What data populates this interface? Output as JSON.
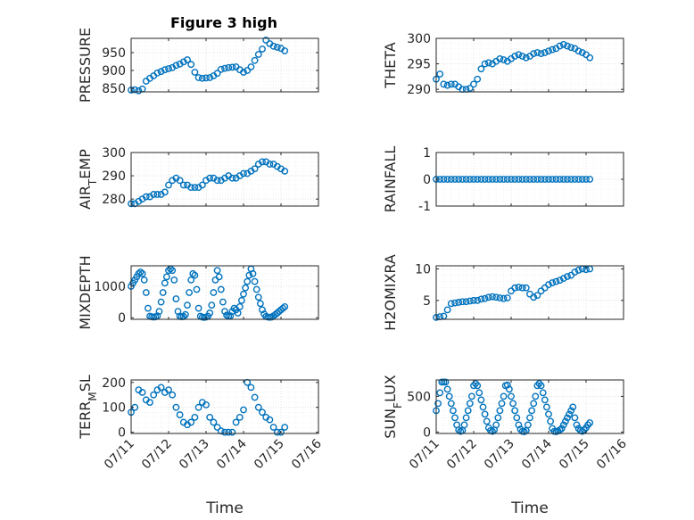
{
  "figure_title": "Figure 3 high",
  "colors": {
    "marker": "#0072BD",
    "axis": "#262626",
    "grid": "#dcdcdc"
  },
  "chart_data": [
    {
      "type": "scatter",
      "ylabel": "PRESSURE",
      "xlim": [
        0,
        5
      ],
      "ylim": [
        840,
        990
      ],
      "yticks": [
        850,
        900,
        950
      ],
      "ytick_labels": [
        "850",
        "900",
        "950"
      ],
      "xtick_labels": [],
      "grid": true,
      "x": [
        0.0,
        0.1,
        0.2,
        0.3,
        0.4,
        0.5,
        0.6,
        0.7,
        0.8,
        0.9,
        1.0,
        1.1,
        1.2,
        1.3,
        1.4,
        1.5,
        1.6,
        1.7,
        1.8,
        1.9,
        2.0,
        2.1,
        2.2,
        2.3,
        2.4,
        2.5,
        2.6,
        2.7,
        2.8,
        2.9,
        3.0,
        3.1,
        3.2,
        3.3,
        3.4,
        3.5,
        3.6,
        3.7,
        3.8,
        3.9,
        4.0,
        4.1
      ],
      "y": [
        845,
        846,
        843,
        848,
        870,
        878,
        885,
        893,
        897,
        902,
        905,
        908,
        914,
        918,
        924,
        930,
        917,
        895,
        880,
        878,
        879,
        880,
        885,
        892,
        903,
        906,
        908,
        909,
        910,
        902,
        895,
        900,
        910,
        928,
        945,
        960,
        985,
        975,
        968,
        965,
        962,
        955
      ]
    },
    {
      "type": "scatter",
      "ylabel": "AIR_TEMP",
      "xlim": [
        0,
        5
      ],
      "ylim": [
        277,
        300
      ],
      "yticks": [
        280,
        290,
        300
      ],
      "ytick_labels": [
        "280",
        "290",
        "300"
      ],
      "xtick_labels": [],
      "grid": true,
      "x": [
        0.0,
        0.1,
        0.2,
        0.3,
        0.4,
        0.5,
        0.6,
        0.7,
        0.8,
        0.9,
        1.0,
        1.1,
        1.2,
        1.3,
        1.4,
        1.5,
        1.6,
        1.7,
        1.8,
        1.9,
        2.0,
        2.1,
        2.2,
        2.3,
        2.4,
        2.5,
        2.6,
        2.7,
        2.8,
        2.9,
        3.0,
        3.1,
        3.2,
        3.3,
        3.4,
        3.5,
        3.6,
        3.7,
        3.8,
        3.9,
        4.0,
        4.1
      ],
      "y": [
        278,
        278,
        279,
        280,
        281,
        281,
        282,
        282,
        282,
        283,
        286,
        288,
        289,
        288,
        286,
        286,
        285,
        285,
        285,
        286,
        288,
        289,
        289,
        288,
        288,
        289,
        290,
        289,
        289,
        290,
        291,
        291,
        292,
        293,
        295,
        296,
        296,
        295,
        295,
        294,
        293,
        292
      ]
    },
    {
      "type": "scatter",
      "ylabel": "MIXDEPTH",
      "xlim": [
        0,
        5
      ],
      "ylim": [
        -50,
        1650
      ],
      "yticks": [
        0,
        1000
      ],
      "ytick_labels": [
        "0",
        "1000"
      ],
      "xtick_labels": [],
      "grid": true,
      "x": [
        0.0,
        0.05,
        0.1,
        0.15,
        0.2,
        0.25,
        0.3,
        0.35,
        0.4,
        0.45,
        0.5,
        0.55,
        0.6,
        0.65,
        0.7,
        0.75,
        0.8,
        0.85,
        0.9,
        0.95,
        1.0,
        1.05,
        1.1,
        1.15,
        1.2,
        1.25,
        1.3,
        1.35,
        1.4,
        1.45,
        1.5,
        1.55,
        1.6,
        1.65,
        1.7,
        1.75,
        1.8,
        1.85,
        1.9,
        1.95,
        2.0,
        2.05,
        2.1,
        2.15,
        2.2,
        2.25,
        2.3,
        2.35,
        2.4,
        2.45,
        2.5,
        2.55,
        2.6,
        2.65,
        2.7,
        2.75,
        2.8,
        2.85,
        2.9,
        2.95,
        3.0,
        3.05,
        3.1,
        3.15,
        3.2,
        3.25,
        3.3,
        3.35,
        3.4,
        3.45,
        3.5,
        3.55,
        3.6,
        3.65,
        3.7,
        3.75,
        3.8,
        3.85,
        3.9,
        3.95,
        4.0,
        4.05,
        4.1
      ],
      "y": [
        1000,
        1100,
        1200,
        1300,
        1400,
        1450,
        1400,
        1200,
        800,
        300,
        50,
        30,
        20,
        30,
        60,
        200,
        500,
        800,
        1100,
        1300,
        1500,
        1550,
        1500,
        1200,
        600,
        200,
        50,
        30,
        40,
        100,
        400,
        800,
        1200,
        1400,
        1350,
        900,
        300,
        50,
        20,
        10,
        20,
        50,
        150,
        400,
        800,
        1200,
        1500,
        1300,
        900,
        500,
        200,
        80,
        50,
        60,
        200,
        300,
        250,
        150,
        350,
        550,
        750,
        950,
        1150,
        1350,
        1550,
        1400,
        1150,
        900,
        650,
        450,
        250,
        120,
        40,
        20,
        15,
        20,
        60,
        100,
        150,
        200,
        250,
        300,
        350
      ]
    },
    {
      "type": "scatter",
      "ylabel": "TERR_MSL",
      "xlim": [
        0,
        5
      ],
      "ylim": [
        -5,
        210
      ],
      "yticks": [
        0,
        100,
        200
      ],
      "ytick_labels": [
        "0",
        "100",
        "200"
      ],
      "xtick_labels": [
        "07/11",
        "07/12",
        "07/13",
        "07/14",
        "07/15",
        "07/16"
      ],
      "xlabel": "Time",
      "grid": true,
      "x": [
        0.0,
        0.1,
        0.2,
        0.3,
        0.4,
        0.5,
        0.6,
        0.7,
        0.8,
        0.9,
        1.0,
        1.1,
        1.2,
        1.3,
        1.4,
        1.5,
        1.6,
        1.7,
        1.8,
        1.9,
        2.0,
        2.1,
        2.2,
        2.3,
        2.4,
        2.5,
        2.6,
        2.7,
        2.8,
        2.9,
        3.0,
        3.1,
        3.2,
        3.3,
        3.4,
        3.5,
        3.6,
        3.7,
        3.8,
        3.9,
        4.0,
        4.1
      ],
      "y": [
        80,
        100,
        170,
        160,
        130,
        120,
        150,
        170,
        180,
        160,
        170,
        150,
        100,
        70,
        40,
        30,
        40,
        60,
        100,
        120,
        110,
        60,
        40,
        20,
        5,
        0,
        0,
        0,
        40,
        60,
        90,
        200,
        180,
        140,
        100,
        80,
        60,
        50,
        20,
        0,
        0,
        20
      ]
    },
    {
      "type": "scatter",
      "ylabel": "THETA",
      "xlim": [
        0,
        5
      ],
      "ylim": [
        289.5,
        300
      ],
      "yticks": [
        290,
        295,
        300
      ],
      "ytick_labels": [
        "290",
        "295",
        "300"
      ],
      "xtick_labels": [],
      "grid": true,
      "x": [
        0.0,
        0.1,
        0.2,
        0.3,
        0.4,
        0.5,
        0.6,
        0.7,
        0.8,
        0.9,
        1.0,
        1.1,
        1.2,
        1.3,
        1.4,
        1.5,
        1.6,
        1.7,
        1.8,
        1.9,
        2.0,
        2.1,
        2.2,
        2.3,
        2.4,
        2.5,
        2.6,
        2.7,
        2.8,
        2.9,
        3.0,
        3.1,
        3.2,
        3.3,
        3.4,
        3.5,
        3.6,
        3.7,
        3.8,
        3.9,
        4.0,
        4.1
      ],
      "y": [
        292,
        293,
        291,
        290.8,
        291,
        291,
        290.5,
        290,
        290,
        290.2,
        291,
        292,
        294,
        295,
        295.2,
        295,
        295.5,
        296,
        295.8,
        295.5,
        296,
        296.5,
        296.8,
        296.5,
        296.2,
        296.5,
        297,
        297.2,
        297,
        297.2,
        297.5,
        297.8,
        298,
        298.5,
        298.8,
        298.5,
        298.2,
        298,
        297.5,
        297.2,
        296.8,
        296.2
      ]
    },
    {
      "type": "scatter",
      "ylabel": "RAINFALL",
      "xlim": [
        0,
        5
      ],
      "ylim": [
        -1,
        1
      ],
      "yticks": [
        -1,
        0,
        1
      ],
      "ytick_labels": [
        "-1",
        "0",
        "1"
      ],
      "xtick_labels": [],
      "grid": true,
      "x": [
        0.0,
        0.1,
        0.2,
        0.3,
        0.4,
        0.5,
        0.6,
        0.7,
        0.8,
        0.9,
        1.0,
        1.1,
        1.2,
        1.3,
        1.4,
        1.5,
        1.6,
        1.7,
        1.8,
        1.9,
        2.0,
        2.1,
        2.2,
        2.3,
        2.4,
        2.5,
        2.6,
        2.7,
        2.8,
        2.9,
        3.0,
        3.1,
        3.2,
        3.3,
        3.4,
        3.5,
        3.6,
        3.7,
        3.8,
        3.9,
        4.0,
        4.1
      ],
      "y": [
        0,
        0,
        0,
        0,
        0,
        0,
        0,
        0,
        0,
        0,
        0,
        0,
        0,
        0,
        0,
        0,
        0,
        0,
        0,
        0,
        0,
        0,
        0,
        0,
        0,
        0,
        0,
        0,
        0,
        0,
        0,
        0,
        0,
        0,
        0,
        0,
        0,
        0,
        0,
        0,
        0,
        0
      ]
    },
    {
      "type": "scatter",
      "ylabel": "H2OMIXRA",
      "xlim": [
        0,
        5
      ],
      "ylim": [
        2,
        10.5
      ],
      "yticks": [
        5,
        10
      ],
      "ytick_labels": [
        "5",
        "10"
      ],
      "xtick_labels": [],
      "grid": true,
      "x": [
        0.0,
        0.1,
        0.2,
        0.3,
        0.4,
        0.5,
        0.6,
        0.7,
        0.8,
        0.9,
        1.0,
        1.1,
        1.2,
        1.3,
        1.4,
        1.5,
        1.6,
        1.7,
        1.8,
        1.9,
        2.0,
        2.1,
        2.2,
        2.3,
        2.4,
        2.5,
        2.6,
        2.7,
        2.8,
        2.9,
        3.0,
        3.1,
        3.2,
        3.3,
        3.4,
        3.5,
        3.6,
        3.7,
        3.8,
        3.9,
        4.0,
        4.1
      ],
      "y": [
        2.3,
        2.4,
        2.5,
        3.5,
        4.5,
        4.6,
        4.7,
        4.8,
        4.8,
        4.9,
        5.0,
        5.0,
        5.2,
        5.3,
        5.5,
        5.6,
        5.5,
        5.4,
        5.3,
        5.4,
        6.5,
        7.0,
        7.1,
        7.0,
        7.0,
        6.0,
        5.5,
        5.8,
        6.5,
        7.0,
        7.5,
        7.8,
        8.0,
        8.2,
        8.5,
        8.8,
        9.0,
        9.5,
        9.8,
        10.0,
        9.9,
        10.0
      ]
    },
    {
      "type": "scatter",
      "ylabel": "SUN_FLUX",
      "xlim": [
        0,
        5
      ],
      "ylim": [
        -20,
        730
      ],
      "yticks": [
        0,
        500
      ],
      "ytick_labels": [
        "0",
        "500"
      ],
      "xtick_labels": [
        "07/11",
        "07/12",
        "07/13",
        "07/14",
        "07/15",
        "07/16"
      ],
      "xlabel": "Time",
      "grid": true,
      "x": [
        0.0,
        0.05,
        0.1,
        0.15,
        0.2,
        0.25,
        0.3,
        0.35,
        0.4,
        0.45,
        0.5,
        0.55,
        0.6,
        0.65,
        0.7,
        0.75,
        0.8,
        0.85,
        0.9,
        0.95,
        1.0,
        1.05,
        1.1,
        1.15,
        1.2,
        1.25,
        1.3,
        1.35,
        1.4,
        1.45,
        1.5,
        1.55,
        1.6,
        1.65,
        1.7,
        1.75,
        1.8,
        1.85,
        1.9,
        1.95,
        2.0,
        2.05,
        2.1,
        2.15,
        2.2,
        2.25,
        2.3,
        2.35,
        2.4,
        2.45,
        2.5,
        2.55,
        2.6,
        2.65,
        2.7,
        2.75,
        2.8,
        2.85,
        2.9,
        2.95,
        3.0,
        3.05,
        3.1,
        3.15,
        3.2,
        3.25,
        3.3,
        3.35,
        3.4,
        3.45,
        3.5,
        3.55,
        3.6,
        3.65,
        3.7,
        3.75,
        3.8,
        3.85,
        3.9,
        3.95,
        4.0,
        4.05,
        4.1
      ],
      "y": [
        300,
        400,
        550,
        700,
        700,
        700,
        600,
        500,
        400,
        300,
        200,
        100,
        30,
        10,
        20,
        100,
        200,
        300,
        400,
        500,
        650,
        680,
        650,
        550,
        450,
        350,
        250,
        150,
        60,
        20,
        10,
        30,
        100,
        200,
        300,
        400,
        500,
        650,
        660,
        600,
        500,
        400,
        300,
        200,
        100,
        40,
        10,
        5,
        20,
        100,
        200,
        300,
        400,
        500,
        650,
        680,
        650,
        550,
        450,
        350,
        250,
        150,
        50,
        10,
        5,
        15,
        30,
        50,
        100,
        150,
        200,
        250,
        300,
        350,
        200,
        100,
        50,
        20,
        10,
        30,
        60,
        100,
        130
      ]
    }
  ]
}
